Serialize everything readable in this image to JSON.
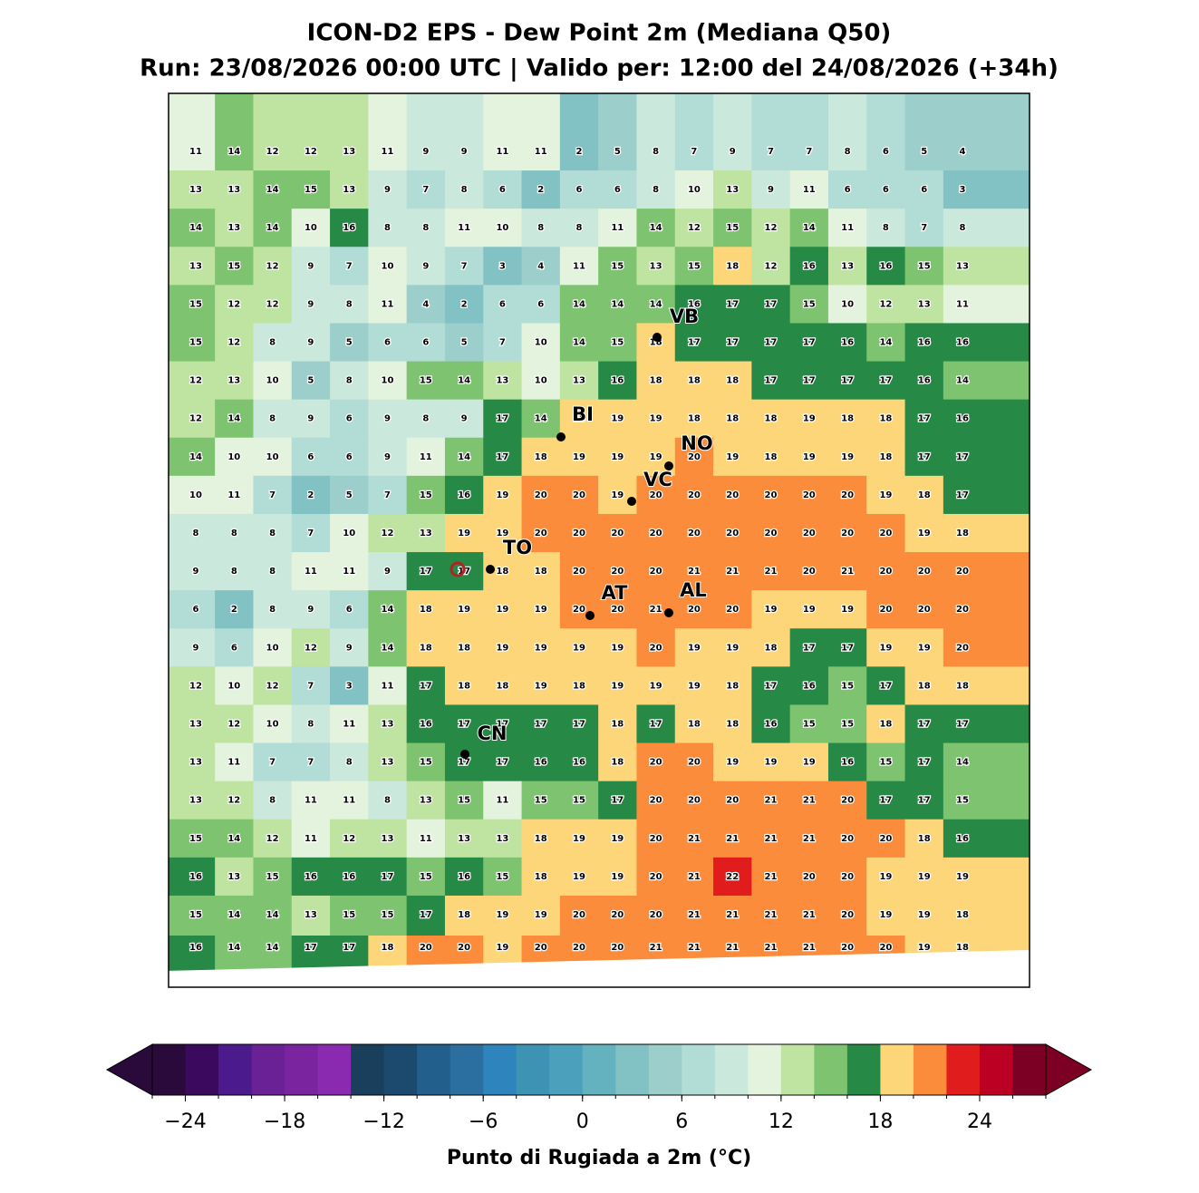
{
  "title": [
    "ICON-D2 EPS - Dew Point 2m (Mediana Q50)",
    "Run: 23/08/2026 00:00 UTC | Valido per: 12:00 del 24/08/2026 (+34h)"
  ],
  "grid": [
    [
      11,
      14,
      12,
      12,
      13,
      11,
      9,
      9,
      11,
      11,
      2,
      5,
      8,
      7,
      9,
      7,
      7,
      8,
      6,
      5,
      4
    ],
    [
      13,
      13,
      14,
      15,
      13,
      9,
      7,
      8,
      6,
      2,
      6,
      6,
      8,
      10,
      13,
      9,
      11,
      6,
      6,
      6,
      3
    ],
    [
      14,
      13,
      14,
      10,
      16,
      8,
      8,
      11,
      10,
      8,
      8,
      11,
      14,
      12,
      15,
      12,
      14,
      11,
      8,
      7,
      8
    ],
    [
      13,
      15,
      12,
      9,
      7,
      10,
      9,
      7,
      3,
      4,
      11,
      15,
      13,
      15,
      18,
      12,
      16,
      13,
      16,
      15,
      13
    ],
    [
      15,
      12,
      12,
      9,
      8,
      11,
      4,
      2,
      6,
      6,
      14,
      14,
      14,
      16,
      17,
      17,
      15,
      10,
      12,
      13,
      11
    ],
    [
      15,
      12,
      8,
      9,
      5,
      6,
      6,
      5,
      7,
      10,
      14,
      15,
      18,
      17,
      17,
      17,
      17,
      16,
      14,
      16,
      16
    ],
    [
      12,
      13,
      10,
      5,
      8,
      10,
      15,
      14,
      13,
      10,
      13,
      16,
      18,
      18,
      18,
      17,
      17,
      17,
      17,
      16,
      14
    ],
    [
      12,
      14,
      8,
      9,
      6,
      9,
      8,
      9,
      17,
      14,
      18,
      19,
      19,
      18,
      18,
      18,
      19,
      18,
      18,
      17,
      16
    ],
    [
      14,
      10,
      10,
      6,
      6,
      9,
      11,
      14,
      17,
      18,
      19,
      19,
      19,
      20,
      19,
      18,
      19,
      19,
      18,
      17,
      17
    ],
    [
      10,
      11,
      7,
      2,
      5,
      7,
      15,
      16,
      19,
      20,
      20,
      19,
      20,
      20,
      20,
      20,
      20,
      20,
      19,
      18,
      17
    ],
    [
      8,
      8,
      8,
      7,
      10,
      12,
      13,
      19,
      19,
      20,
      20,
      20,
      20,
      20,
      20,
      20,
      20,
      20,
      20,
      19,
      18
    ],
    [
      9,
      8,
      8,
      11,
      11,
      9,
      17,
      17,
      18,
      18,
      20,
      20,
      20,
      21,
      21,
      21,
      20,
      21,
      20,
      20,
      20
    ],
    [
      6,
      2,
      8,
      9,
      6,
      14,
      18,
      19,
      19,
      19,
      20,
      20,
      21,
      20,
      20,
      19,
      19,
      19,
      20,
      20,
      20
    ],
    [
      9,
      6,
      10,
      12,
      9,
      14,
      18,
      18,
      19,
      19,
      19,
      19,
      20,
      19,
      19,
      18,
      17,
      17,
      19,
      19,
      20
    ],
    [
      12,
      10,
      12,
      7,
      3,
      11,
      17,
      18,
      18,
      19,
      18,
      19,
      19,
      19,
      18,
      17,
      16,
      15,
      17,
      18,
      18
    ],
    [
      13,
      12,
      10,
      8,
      11,
      13,
      16,
      17,
      17,
      17,
      17,
      18,
      17,
      18,
      18,
      16,
      15,
      15,
      18,
      17,
      17
    ],
    [
      13,
      11,
      7,
      7,
      8,
      13,
      15,
      17,
      17,
      16,
      16,
      18,
      20,
      20,
      19,
      19,
      19,
      16,
      15,
      17,
      14
    ],
    [
      13,
      12,
      8,
      11,
      11,
      8,
      13,
      15,
      11,
      15,
      15,
      17,
      20,
      20,
      20,
      21,
      21,
      20,
      17,
      17,
      15
    ],
    [
      15,
      14,
      12,
      11,
      12,
      13,
      11,
      13,
      13,
      18,
      19,
      19,
      20,
      21,
      21,
      21,
      21,
      20,
      20,
      18,
      16
    ],
    [
      16,
      13,
      15,
      16,
      16,
      17,
      15,
      16,
      15,
      18,
      19,
      19,
      20,
      21,
      22,
      21,
      20,
      20,
      19,
      19,
      19
    ],
    [
      15,
      14,
      14,
      13,
      15,
      15,
      17,
      18,
      19,
      19,
      20,
      20,
      20,
      21,
      21,
      21,
      21,
      20,
      19,
      19,
      18
    ],
    [
      16,
      14,
      14,
      17,
      17,
      18,
      20,
      20,
      19,
      20,
      20,
      20,
      21,
      21,
      21,
      21,
      21,
      20,
      20,
      19,
      18
    ]
  ],
  "cities": [
    "VB",
    "BI",
    "NO",
    "VC",
    "TO",
    "AT",
    "AL",
    "CN"
  ],
  "colorbar": {
    "levels": [
      -26,
      -24,
      -22,
      -20,
      -18,
      -16,
      -14,
      -12,
      -10,
      -8,
      -6,
      -4,
      -2,
      0,
      2,
      4,
      6,
      8,
      10,
      12,
      14,
      16,
      18,
      20,
      22,
      24,
      26,
      28
    ],
    "colors": [
      "#2a0a3a",
      "#3b0a5e",
      "#4b1a8c",
      "#6a2196",
      "#7a24a0",
      "#8a2ab0",
      "#1a3f5c",
      "#1c4a6e",
      "#225f8c",
      "#2a6fa0",
      "#2e84bc",
      "#3d93b3",
      "#4ba1bc",
      "#64b1c0",
      "#82c1c4",
      "#9ccfcc",
      "#b2dcd6",
      "#cae8dc",
      "#e3f3dd",
      "#bfe3a0",
      "#7ec470",
      "#268a46",
      "#fed67a",
      "#fa8c3c",
      "#e01c1c",
      "#bb0024",
      "#7c0024"
    ],
    "ticks": [
      {
        "value": -24,
        "label": "−24"
      },
      {
        "value": -18,
        "label": "−18"
      },
      {
        "value": -12,
        "label": "−12"
      },
      {
        "value": -6,
        "label": "−6"
      },
      0,
      6,
      12,
      18,
      24
    ],
    "label": "Punto di Rugiada a 2m (°C)"
  }
}
